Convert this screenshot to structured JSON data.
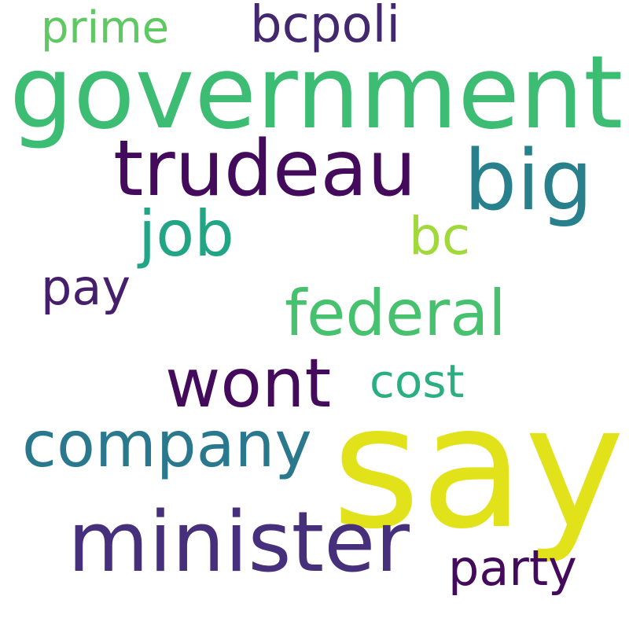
{
  "words": {
    "say": {
      "text": "say",
      "color": "#e2e21a"
    },
    "government": {
      "text": "government",
      "color": "#3dbc73"
    },
    "minister": {
      "text": "minister",
      "color": "#46307c"
    },
    "trudeau": {
      "text": "trudeau",
      "color": "#440a5c"
    },
    "big": {
      "text": "big",
      "color": "#27808c"
    },
    "wont": {
      "text": "wont",
      "color": "#440a5c"
    },
    "company": {
      "text": "company",
      "color": "#2a788e"
    },
    "federal": {
      "text": "federal",
      "color": "#46c16d"
    },
    "job": {
      "text": "job",
      "color": "#21a585"
    },
    "bcpoli": {
      "text": "bcpoli",
      "color": "#44286f"
    },
    "pay": {
      "text": "pay",
      "color": "#451f6b"
    },
    "bc": {
      "text": "bc",
      "color": "#a2d93a"
    },
    "cost": {
      "text": "cost",
      "color": "#29af80"
    },
    "party": {
      "text": "party",
      "color": "#440a5c"
    },
    "prime": {
      "text": "prime",
      "color": "#5ec962"
    }
  }
}
